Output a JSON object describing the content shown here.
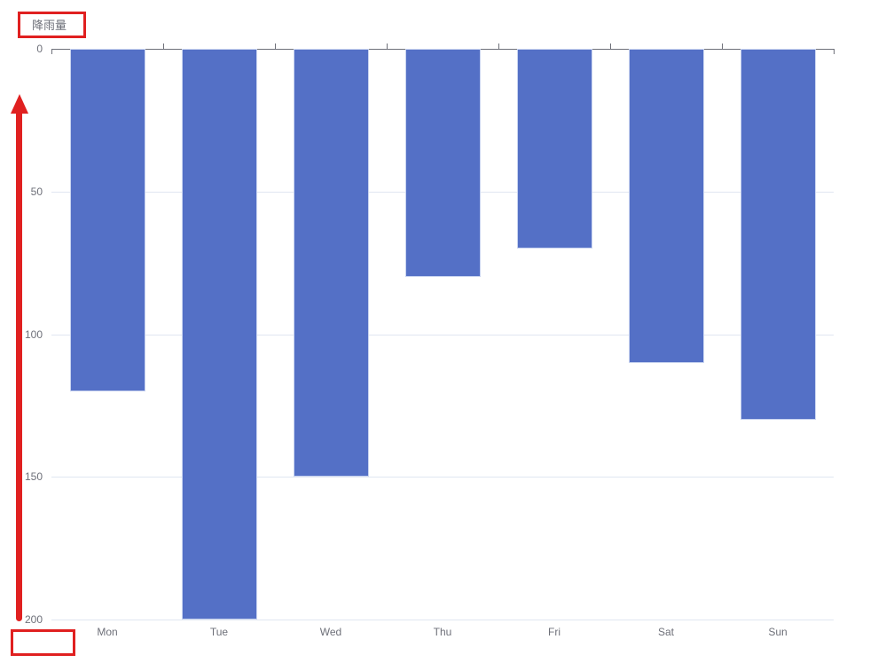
{
  "title": "降雨量",
  "colors": {
    "bar": "#5470C6",
    "bar_border": "#c9d4f0",
    "axis_line": "#6E7079",
    "grid_line": "#E0E6F1",
    "text": "#6E7079",
    "annotation": "#E02020"
  },
  "chart_data": {
    "type": "bar",
    "title": "降雨量",
    "categories": [
      "Mon",
      "Tue",
      "Wed",
      "Thu",
      "Fri",
      "Sat",
      "Sun"
    ],
    "series": [
      {
        "name": "降雨量",
        "values": [
          120,
          200,
          150,
          80,
          70,
          110,
          130
        ]
      }
    ],
    "xlabel": "",
    "ylabel": "降雨量",
    "y_axis": {
      "min": 0,
      "max": 200,
      "ticks": [
        0,
        50,
        100,
        150,
        200
      ],
      "inverted": true,
      "position_zero": "top"
    },
    "grid": true,
    "legend": false,
    "annotations": [
      "red rectangle around axis name (top-left)",
      "red upward arrow along y axis",
      "empty red rectangle at bottom-left"
    ]
  }
}
